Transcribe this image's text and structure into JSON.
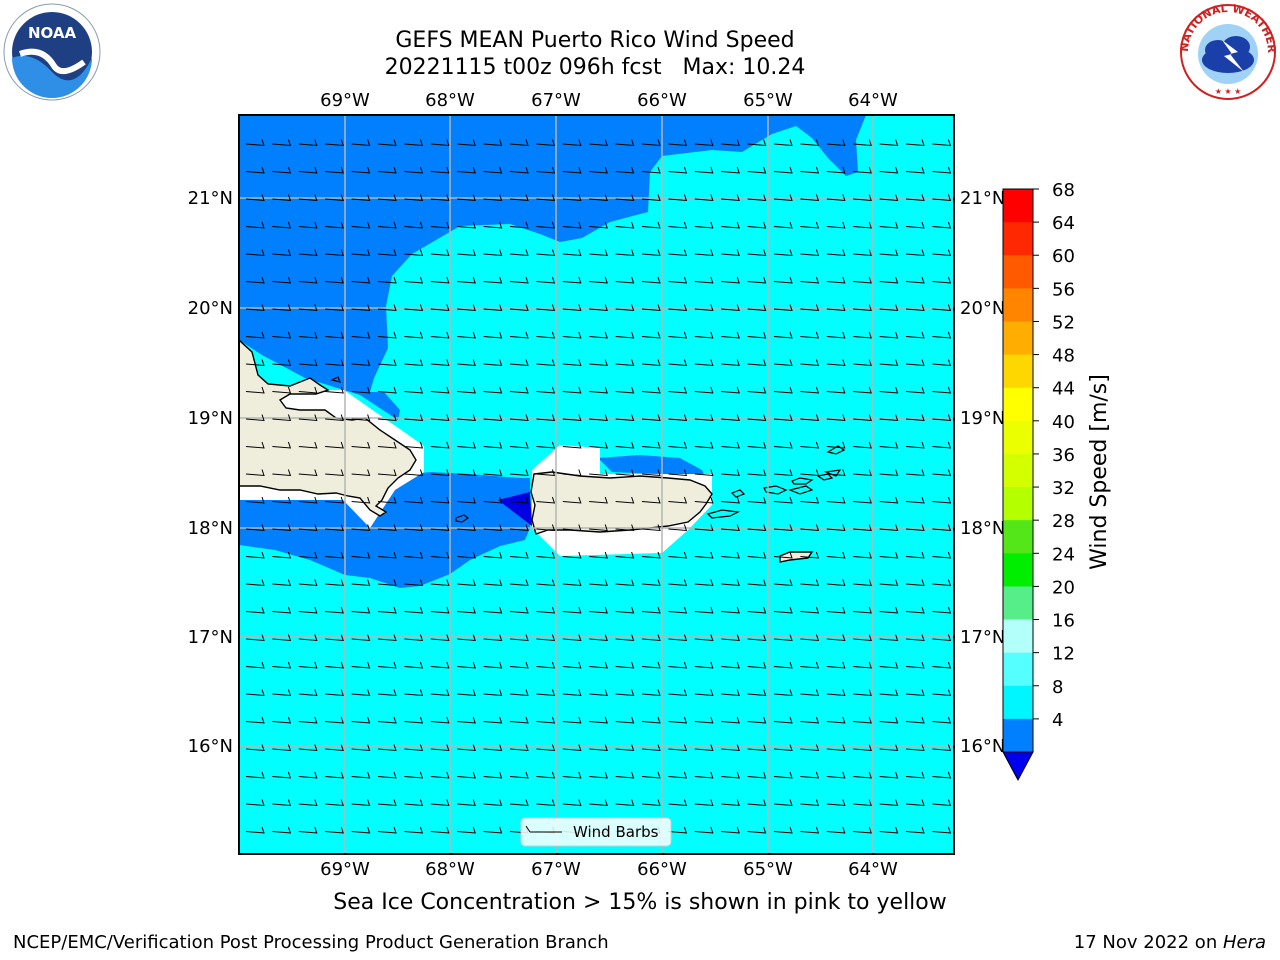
{
  "title_line1": "GEFS MEAN Puerto Rico Wind Speed",
  "title_line2": "20221115 t00z 096h fcst   Max: 10.24",
  "lon_labels": [
    "69°W",
    "68°W",
    "67°W",
    "66°W",
    "65°W",
    "64°W"
  ],
  "lat_labels": [
    "21°N",
    "20°N",
    "19°N",
    "18°N",
    "17°N",
    "16°N"
  ],
  "legend_label": "Wind Barbs",
  "colorbar": {
    "label": "Wind Speed [m/s]",
    "ticks": [
      "68",
      "64",
      "60",
      "56",
      "52",
      "48",
      "44",
      "40",
      "36",
      "32",
      "28",
      "24",
      "20",
      "16",
      "12",
      "8",
      "4"
    ],
    "colors": [
      "#ff0000",
      "#ff2800",
      "#ff5a00",
      "#ff8400",
      "#ffae00",
      "#ffd700",
      "#ffff00",
      "#ecff00",
      "#d4ff00",
      "#b4ff00",
      "#55e619",
      "#00ee00",
      "#55ee88",
      "#b3fff9",
      "#55ffff",
      "#00f6ff",
      "#0080ff"
    ],
    "extend_color": "#0000ee"
  },
  "colors": {
    "ocean_low": "#0080ff",
    "ocean_high": "#00ffff",
    "land": "#efeedc",
    "deep": "#0000e0"
  },
  "caption": "Sea Ice Concentration > 15% is shown in pink to yellow",
  "footer_left": "NCEP/EMC/Verification Post Processing Product Generation Branch",
  "footer_date": "17 Nov 2022 on ",
  "footer_machine": "Hera",
  "logos": {
    "noaa_text": "NOAA",
    "nws_text": "NATIONAL WEATHER SERVICE"
  }
}
